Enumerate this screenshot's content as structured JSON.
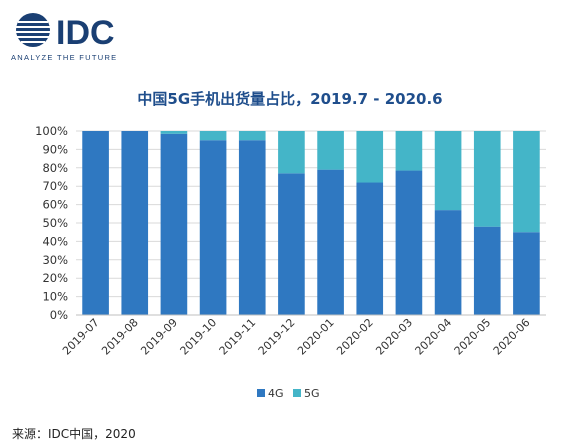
{
  "logo": {
    "name": "IDC",
    "tagline": "ANALYZE THE FUTURE"
  },
  "source": "来源：IDC中国，2020",
  "colors": {
    "brand": "#1a3f73",
    "title": "#1f4e8c",
    "series_4g": "#2f78c1",
    "series_5g": "#44b5c8",
    "axis_text": "#333333",
    "grid": "#d9d9d9"
  },
  "chart_data": {
    "type": "bar",
    "stacked": true,
    "title": "中国5G手机出货量占比，2019.7 - 2020.6",
    "xlabel": "",
    "ylabel": "",
    "ylim": [
      0,
      100
    ],
    "y_ticks": [
      "0%",
      "10%",
      "20%",
      "30%",
      "40%",
      "50%",
      "60%",
      "70%",
      "80%",
      "90%",
      "100%"
    ],
    "categories": [
      "2019-07",
      "2019-08",
      "2019-09",
      "2019-10",
      "2019-11",
      "2019-12",
      "2020-01",
      "2020-02",
      "2020-03",
      "2020-04",
      "2020-05",
      "2020-06"
    ],
    "series": [
      {
        "name": "4G",
        "values": [
          100,
          100,
          98.5,
          95,
          95,
          77,
          79,
          72,
          78.5,
          57,
          48,
          45
        ]
      },
      {
        "name": "5G",
        "values": [
          0,
          0,
          1.5,
          5,
          5,
          23,
          21,
          28,
          21.5,
          43,
          52,
          55
        ]
      }
    ],
    "legend_position": "bottom",
    "grid": true
  }
}
